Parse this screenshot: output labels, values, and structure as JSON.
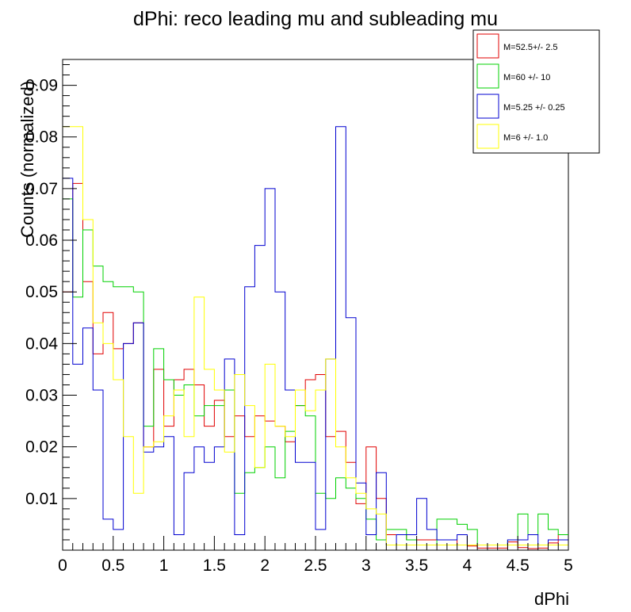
{
  "chart_data": {
    "type": "histogram",
    "title": "dPhi: reco leading mu and subleading mu",
    "xlabel": "dPhi",
    "ylabel": "Counts (normalized)",
    "xlim": [
      0,
      5
    ],
    "ylim": [
      0,
      0.095
    ],
    "bin_width": 0.1,
    "x_ticks": [
      0,
      0.5,
      1,
      1.5,
      2,
      2.5,
      3,
      3.5,
      4,
      4.5,
      5
    ],
    "x_tick_labels": [
      "0",
      "0.5",
      "1",
      "1.5",
      "2",
      "2.5",
      "3",
      "3.5",
      "4",
      "4.5",
      "5"
    ],
    "y_ticks": [
      0.01,
      0.02,
      0.03,
      0.04,
      0.05,
      0.06,
      0.07,
      0.08,
      0.09
    ],
    "y_tick_labels": [
      "0.01",
      "0.02",
      "0.03",
      "0.04",
      "0.05",
      "0.06",
      "0.07",
      "0.08",
      "0.09"
    ],
    "legend_position": "top-right",
    "grid": false,
    "series": [
      {
        "name": "M=52.5+/- 2.5",
        "color": "#e00000",
        "values": [
          0.05,
          0.071,
          0.052,
          0.038,
          0.046,
          0.039,
          0.04,
          0.044,
          0.02,
          0.035,
          0.024,
          0.033,
          0.035,
          0.032,
          0.024,
          0.029,
          0.022,
          0.026,
          0.022,
          0.026,
          0.025,
          0.024,
          0.021,
          0.028,
          0.033,
          0.034,
          0.022,
          0.023,
          0.017,
          0.009,
          0.02,
          0.01,
          0.003,
          0.003,
          0.002,
          0.002,
          0.002,
          0.002,
          0.002,
          0.001,
          0.0008,
          0.0004,
          0.0004,
          0.0004,
          0.0016,
          0.0005,
          0.0003,
          0.0004,
          0.0014,
          0.003
        ]
      },
      {
        "name": "M=60 +/- 10",
        "color": "#00d000",
        "values": [
          0.068,
          0.049,
          0.062,
          0.055,
          0.052,
          0.051,
          0.051,
          0.05,
          0.024,
          0.039,
          0.033,
          0.03,
          0.032,
          0.026,
          0.028,
          0.028,
          0.031,
          0.011,
          0.015,
          0.016,
          0.02,
          0.014,
          0.023,
          0.028,
          0.026,
          0.011,
          0.01,
          0.014,
          0.012,
          0.01,
          0.006,
          0.002,
          0.004,
          0.004,
          0.002,
          0.001,
          0.001,
          0.006,
          0.006,
          0.005,
          0.004,
          0.001,
          0.001,
          0.001,
          0.002,
          0.007,
          0.003,
          0.007,
          0.004,
          0.003
        ]
      },
      {
        "name": "M=5.25 +/- 0.25",
        "color": "#0000d0",
        "values": [
          0.072,
          0.036,
          0.043,
          0.031,
          0.006,
          0.004,
          0.04,
          0.044,
          0.019,
          0.02,
          0.022,
          0.003,
          0.015,
          0.02,
          0.017,
          0.02,
          0.037,
          0.003,
          0.051,
          0.059,
          0.07,
          0.05,
          0.031,
          0.017,
          0.017,
          0.004,
          0.037,
          0.082,
          0.045,
          0.013,
          0.003,
          0.015,
          0.001,
          0.003,
          0.003,
          0.01,
          0.004,
          0.002,
          0.002,
          0.003,
          0.001,
          0.001,
          0.001,
          0.001,
          0.002,
          0.002,
          0.003,
          0.001,
          0.002,
          0.002
        ]
      },
      {
        "name": "M=6 +/- 1.0",
        "color": "#ffff00",
        "values": [
          0.082,
          0.082,
          0.064,
          0.044,
          0.04,
          0.033,
          0.022,
          0.011,
          0.02,
          0.021,
          0.026,
          0.031,
          0.022,
          0.049,
          0.035,
          0.031,
          0.019,
          0.034,
          0.028,
          0.016,
          0.036,
          0.024,
          0.022,
          0.031,
          0.027,
          0.031,
          0.037,
          0.02,
          0.014,
          0.011,
          0.008,
          0.007,
          0.001,
          0.001,
          0.001,
          0.001,
          0.001,
          0.001,
          0.001,
          0.001,
          0.001,
          0.001,
          0.001,
          0.001,
          0.001,
          0.001,
          0.001,
          0.001,
          0.001,
          0.001
        ]
      }
    ]
  }
}
